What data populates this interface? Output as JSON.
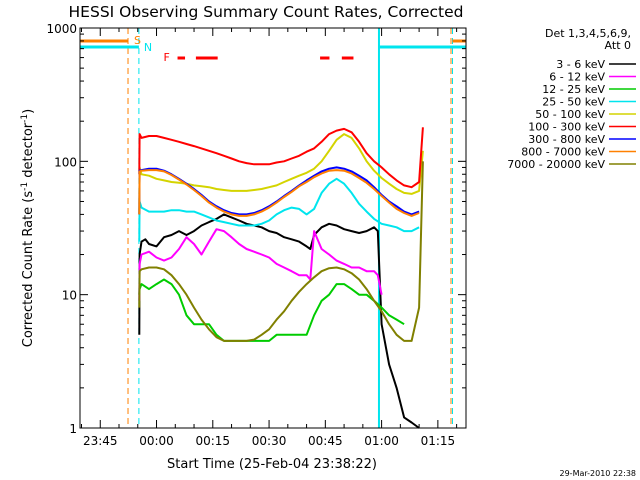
{
  "chart_data": {
    "type": "line",
    "title": "HESSI Observing Summary Count Rates, Corrected",
    "xlabel": "Start Time (25-Feb-04 23:38:22)",
    "ylabel_main": "Corrected Count Rate (s",
    "ylabel_sup1": "-1",
    "ylabel_mid": " detector",
    "ylabel_sup2": "-1",
    "ylabel_end": ")",
    "timestamp": "29-Mar-2010 22:38",
    "yscale": "log",
    "ylim": [
      1,
      1000
    ],
    "xlim": [
      -20.4,
      82.5
    ],
    "x_unit": "minutes after 00:00 UT 26-Feb-04",
    "x_ticks": [
      {
        "min": -15,
        "label": "23:45"
      },
      {
        "min": 0,
        "label": "00:00"
      },
      {
        "min": 15,
        "label": "00:15"
      },
      {
        "min": 30,
        "label": "00:30"
      },
      {
        "min": 45,
        "label": "00:45"
      },
      {
        "min": 60,
        "label": "01:00"
      },
      {
        "min": 75,
        "label": "01:15"
      }
    ],
    "y_ticks": [
      {
        "v": 1,
        "label": "1"
      },
      {
        "v": 10,
        "label": "10"
      },
      {
        "v": 100,
        "label": "100"
      },
      {
        "v": 1000,
        "label": "1000"
      }
    ],
    "legend_header": [
      "Det 1,3,4,5,6,9,",
      "Att 0"
    ],
    "legend_placement": "right, outside plot",
    "flags": {
      "s_label": "S",
      "n_label": "N",
      "f_label": "F",
      "saa_min": -7.6,
      "night_start_min": -4.7,
      "night_end_min": 78.9,
      "day_start_min": 59.3,
      "flare_segments": [
        [
          5.6,
          7.6
        ],
        [
          10.5,
          16.3
        ],
        [
          43.6,
          46.1
        ],
        [
          49.4,
          52.5
        ]
      ]
    },
    "series": [
      {
        "name": "3 - 6 keV",
        "color": "#000000",
        "x": [
          -4.6,
          -4.5,
          -4,
          -3,
          -2,
          0,
          2,
          4,
          6,
          8,
          10,
          12,
          14,
          16,
          18,
          20,
          22,
          24,
          26,
          28,
          30,
          32,
          34,
          36,
          38,
          40,
          41,
          42,
          44,
          46,
          48,
          50,
          52,
          54,
          56,
          58,
          59,
          60,
          62,
          64,
          66,
          68,
          70
        ],
        "y": [
          5,
          20,
          25,
          26,
          24,
          23,
          27,
          28,
          30,
          28,
          30,
          33,
          35,
          37,
          40,
          38,
          36,
          34,
          33,
          32,
          30,
          29,
          27,
          26,
          25,
          23,
          22,
          28,
          32,
          34,
          33,
          31,
          30,
          29,
          30,
          32,
          30,
          6,
          3,
          2,
          1.2,
          1.1,
          1
        ]
      },
      {
        "name": "6 - 12 keV",
        "color": "#ff00ff",
        "x": [
          -4.6,
          -4.5,
          -4,
          -2,
          0,
          2,
          4,
          6,
          8,
          10,
          12,
          14,
          16,
          18,
          20,
          22,
          24,
          26,
          28,
          30,
          32,
          34,
          36,
          38,
          40,
          41,
          42,
          44,
          46,
          48,
          50,
          52,
          54,
          56,
          58,
          59,
          60
        ],
        "y": [
          9,
          17,
          20,
          21,
          19,
          18,
          19,
          22,
          27,
          24,
          20,
          25,
          31,
          30,
          27,
          24,
          22,
          21,
          20,
          19,
          17,
          16,
          15,
          14,
          14,
          13,
          30,
          22,
          20,
          18,
          17,
          16,
          16,
          15,
          15,
          14,
          10
        ]
      },
      {
        "name": "12 - 25 keV",
        "color": "#00cc00",
        "x": [
          -4.6,
          -4.5,
          -4,
          -2,
          0,
          2,
          4,
          6,
          8,
          10,
          12,
          14,
          16,
          18,
          20,
          22,
          24,
          26,
          28,
          30,
          32,
          34,
          36,
          38,
          40,
          42,
          44,
          46,
          48,
          50,
          52,
          54,
          56,
          58,
          60,
          62,
          64,
          66
        ],
        "y": [
          10,
          11,
          12,
          11,
          12,
          13,
          12,
          10,
          7,
          6,
          6,
          6,
          5,
          4.5,
          4.5,
          4.5,
          4.5,
          4.5,
          4.5,
          4.5,
          5,
          5,
          5,
          5,
          5,
          7,
          9,
          10,
          12,
          12,
          11,
          10,
          10,
          9,
          8,
          7,
          6.5,
          6
        ]
      },
      {
        "name": "25 - 50 keV",
        "color": "#00e5ee",
        "x": [
          -4.6,
          -4.5,
          -4,
          -2,
          0,
          2,
          4,
          6,
          8,
          10,
          12,
          14,
          16,
          18,
          20,
          22,
          24,
          26,
          28,
          30,
          32,
          34,
          36,
          38,
          40,
          42,
          44,
          46,
          48,
          50,
          52,
          54,
          56,
          58,
          60,
          62,
          64,
          66,
          68,
          70
        ],
        "y": [
          25,
          50,
          45,
          42,
          42,
          42,
          43,
          43,
          42,
          42,
          40,
          38,
          36,
          35,
          34,
          33,
          33,
          33,
          34,
          36,
          40,
          43,
          45,
          44,
          40,
          44,
          58,
          68,
          74,
          68,
          58,
          48,
          42,
          37,
          34,
          33,
          32,
          30,
          30,
          32
        ]
      },
      {
        "name": "50 - 100 keV",
        "color": "#d4d400",
        "x": [
          -4.6,
          -4.5,
          -4,
          -2,
          0,
          2,
          4,
          6,
          8,
          10,
          12,
          14,
          16,
          18,
          20,
          22,
          24,
          26,
          28,
          30,
          32,
          34,
          36,
          38,
          40,
          42,
          44,
          46,
          48,
          50,
          52,
          54,
          56,
          58,
          60,
          62,
          64,
          66,
          68,
          70,
          71
        ],
        "y": [
          40,
          90,
          80,
          78,
          74,
          72,
          70,
          69,
          68,
          66,
          65,
          64,
          62,
          61,
          60,
          60,
          60,
          61,
          62,
          64,
          66,
          70,
          74,
          78,
          82,
          88,
          100,
          120,
          145,
          160,
          150,
          125,
          100,
          85,
          75,
          68,
          62,
          58,
          57,
          60,
          120
        ]
      },
      {
        "name": "100 - 300 keV",
        "color": "#ff0000",
        "x": [
          -4.6,
          -4.5,
          -4,
          -2,
          0,
          2,
          4,
          6,
          8,
          10,
          12,
          14,
          16,
          18,
          20,
          22,
          24,
          26,
          28,
          30,
          32,
          34,
          36,
          38,
          40,
          42,
          44,
          46,
          48,
          50,
          52,
          54,
          56,
          58,
          60,
          62,
          64,
          66,
          68,
          70,
          71
        ],
        "y": [
          80,
          160,
          150,
          155,
          155,
          150,
          145,
          140,
          135,
          130,
          125,
          120,
          115,
          110,
          105,
          100,
          97,
          95,
          95,
          95,
          98,
          100,
          105,
          110,
          118,
          125,
          140,
          160,
          170,
          175,
          165,
          140,
          115,
          100,
          90,
          80,
          72,
          66,
          64,
          70,
          180
        ]
      },
      {
        "name": "300 - 800 keV",
        "color": "#0000ff",
        "x": [
          -4.6,
          -4.5,
          -4,
          -2,
          0,
          2,
          4,
          6,
          8,
          10,
          12,
          14,
          16,
          18,
          20,
          22,
          24,
          26,
          28,
          30,
          32,
          34,
          36,
          38,
          40,
          42,
          44,
          46,
          48,
          50,
          52,
          54,
          56,
          58,
          60,
          62,
          64,
          66,
          68,
          70
        ],
        "y": [
          40,
          85,
          86,
          88,
          88,
          85,
          80,
          74,
          68,
          62,
          56,
          50,
          46,
          43,
          41,
          40,
          40,
          41,
          43,
          46,
          50,
          55,
          60,
          66,
          72,
          78,
          84,
          88,
          90,
          88,
          84,
          78,
          72,
          64,
          56,
          50,
          46,
          42,
          40,
          42
        ]
      },
      {
        "name": "800 - 7000 keV",
        "color": "#ff8000",
        "x": [
          -4.6,
          -4.5,
          -4,
          -2,
          0,
          2,
          4,
          6,
          8,
          10,
          12,
          14,
          16,
          18,
          20,
          22,
          24,
          26,
          28,
          30,
          32,
          34,
          36,
          38,
          40,
          42,
          44,
          46,
          48,
          50,
          52,
          54,
          56,
          58,
          60,
          62,
          64,
          66,
          68,
          70
        ],
        "y": [
          40,
          84,
          85,
          86,
          86,
          84,
          79,
          73,
          67,
          61,
          55,
          49,
          45,
          42,
          40,
          39,
          39,
          40,
          42,
          45,
          49,
          54,
          59,
          65,
          70,
          76,
          81,
          85,
          86,
          85,
          81,
          75,
          69,
          62,
          55,
          49,
          44,
          41,
          39,
          41
        ]
      },
      {
        "name": "7000 - 20000 keV",
        "color": "#808000",
        "x": [
          -4.6,
          -4.5,
          -4,
          -2,
          0,
          2,
          4,
          6,
          8,
          10,
          12,
          14,
          16,
          18,
          20,
          22,
          24,
          26,
          28,
          30,
          32,
          34,
          36,
          38,
          40,
          42,
          44,
          46,
          48,
          50,
          52,
          54,
          56,
          58,
          60,
          62,
          64,
          66,
          68,
          70,
          71
        ],
        "y": [
          8,
          15,
          15.5,
          16,
          16,
          15.5,
          14,
          12,
          10,
          8,
          6.5,
          5.5,
          4.8,
          4.5,
          4.5,
          4.5,
          4.5,
          4.6,
          5,
          5.5,
          6.5,
          7.5,
          9,
          10.5,
          12,
          13.5,
          15,
          15.8,
          16,
          15.5,
          14.5,
          13,
          11,
          9,
          7.5,
          6,
          5,
          4.5,
          4.5,
          8,
          100
        ]
      }
    ]
  }
}
